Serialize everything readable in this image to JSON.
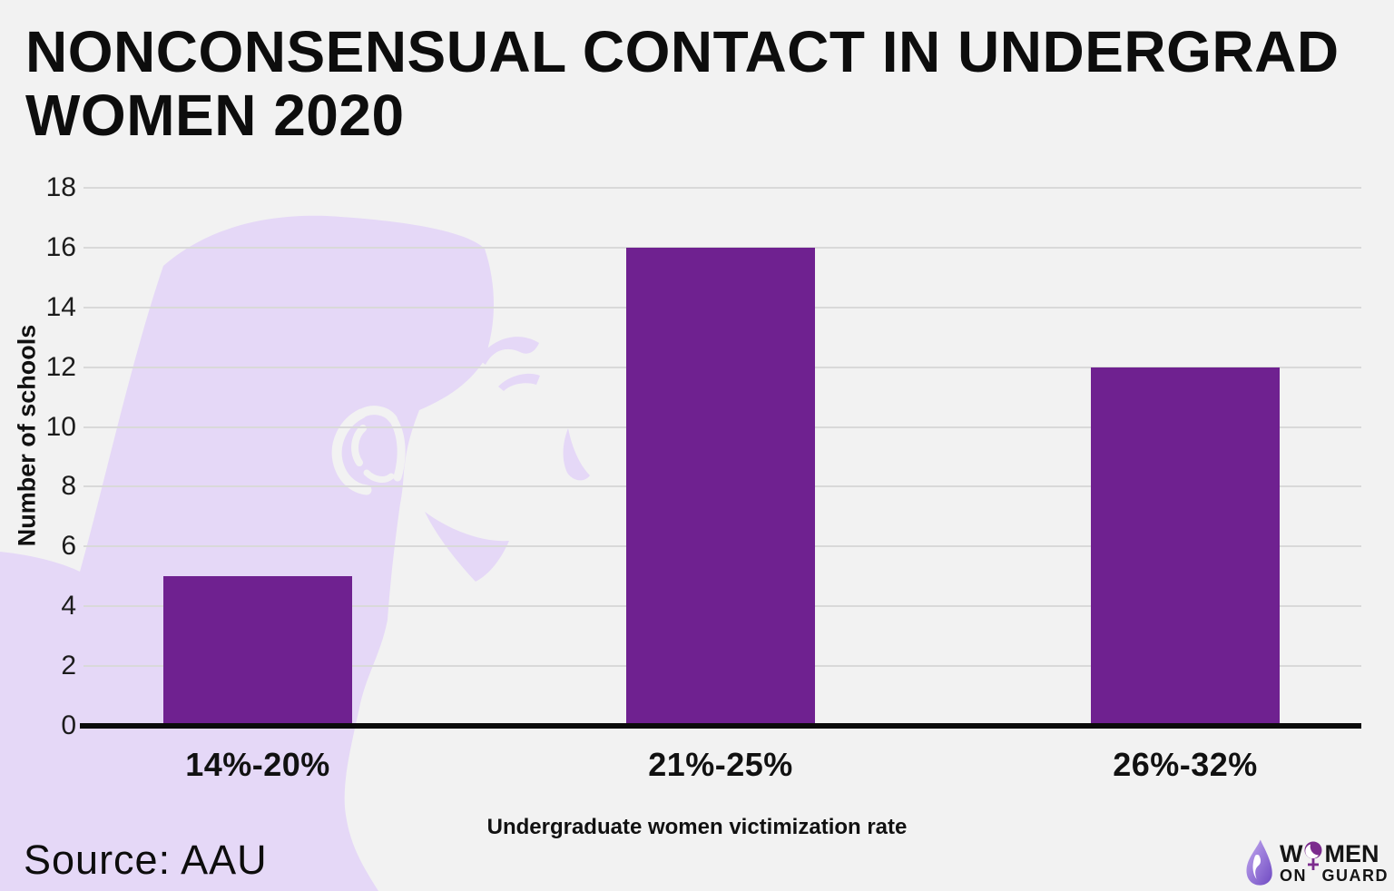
{
  "title": "NONCONSENSUAL CONTACT IN UNDERGRAD WOMEN 2020",
  "source": "Source: AAU",
  "chart_data": {
    "type": "bar",
    "title": "NONCONSENSUAL CONTACT IN UNDERGRAD WOMEN 2020",
    "categories": [
      "14%-20%",
      "21%-25%",
      "26%-32%"
    ],
    "values": [
      5,
      16,
      12
    ],
    "xlabel": "Undergraduate women victimization rate",
    "ylabel": "Number of schools",
    "ylim": [
      0,
      18
    ],
    "ytick_step": 2,
    "grid": true,
    "legend_position": "none",
    "bar_color": "#6F2190",
    "source_label": "Source: AAU"
  },
  "logo": {
    "name": "WOMEN ON GUARD",
    "line1_pre": "W",
    "line1_post": "MEN",
    "line2": "ON GUARD"
  },
  "colors": {
    "background": "#F2F2F2",
    "silhouette": "#E5D8F7",
    "bar": "#6F2190",
    "gridline": "#D9D9D9",
    "axis": "#0B0B0B",
    "text": "#111111",
    "logo_purple": "#7B2B8D"
  }
}
